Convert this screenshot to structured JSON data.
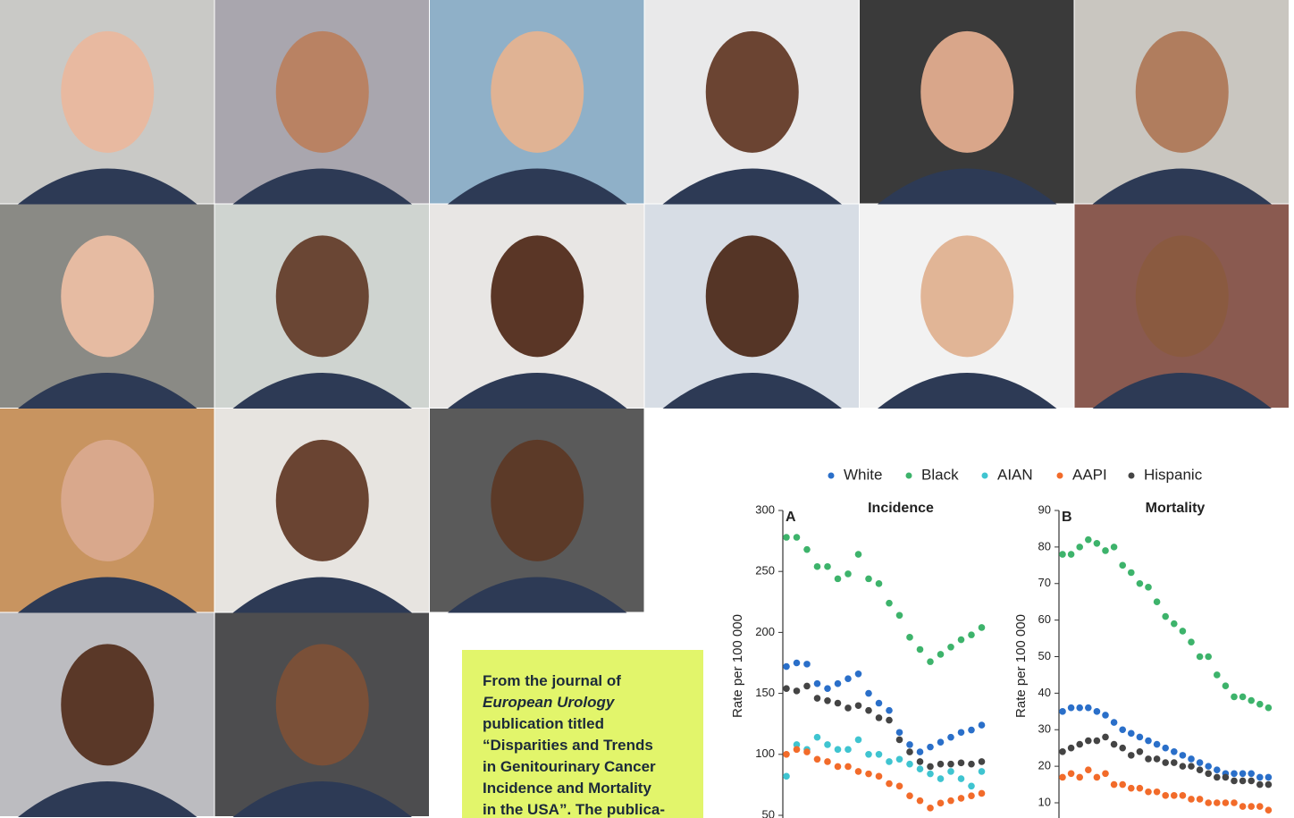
{
  "text_box": {
    "lines": [
      "From the journal of",
      "European Urology",
      "publication titled",
      "“Disparities and Trends",
      "in Genitourinary Cancer",
      "Incidence and Mortality",
      "in the USA”. The publica-"
    ],
    "italic_line": 1
  },
  "chart_data": {
    "type": "scatter",
    "legend": [
      {
        "name": "White",
        "color": "#2a6fc9"
      },
      {
        "name": "Black",
        "color": "#3db36b"
      },
      {
        "name": "AIAN",
        "color": "#3fc4d0"
      },
      {
        "name": "AAPI",
        "color": "#f26b2a"
      },
      {
        "name": "Hispanic",
        "color": "#444444"
      }
    ],
    "panels": [
      {
        "label": "A",
        "title": "Incidence",
        "ylabel": "Rate per 100 000",
        "ylim": [
          50,
          300
        ],
        "yticks": [
          50,
          100,
          150,
          200,
          250,
          300
        ],
        "series": [
          {
            "values": [
              172,
              175,
              174,
              158,
              154,
              158,
              162,
              166,
              150,
              142,
              136,
              118,
              108,
              102,
              106,
              110,
              114,
              118,
              120,
              124
            ]
          },
          {
            "values": [
              278,
              278,
              268,
              254,
              254,
              244,
              248,
              264,
              244,
              240,
              224,
              214,
              196,
              186,
              176,
              182,
              188,
              194,
              198,
              204
            ]
          },
          {
            "values": [
              82,
              108,
              104,
              114,
              108,
              104,
              104,
              112,
              100,
              100,
              94,
              96,
              92,
              88,
              84,
              80,
              86,
              80,
              74,
              86
            ]
          },
          {
            "values": [
              100,
              104,
              102,
              96,
              94,
              90,
              90,
              86,
              84,
              82,
              76,
              74,
              66,
              62,
              56,
              60,
              62,
              64,
              66,
              68
            ]
          },
          {
            "values": [
              154,
              152,
              156,
              146,
              144,
              142,
              138,
              140,
              136,
              130,
              128,
              112,
              102,
              94,
              90,
              92,
              92,
              93,
              92,
              94
            ]
          }
        ]
      },
      {
        "label": "B",
        "title": "Mortality",
        "ylabel": "Rate per 100 000",
        "ylim": [
          10,
          90
        ],
        "yticks": [
          10,
          20,
          30,
          40,
          50,
          60,
          70,
          80,
          90
        ],
        "series": [
          {
            "values": [
              35,
              36,
              36,
              36,
              35,
              34,
              32,
              30,
              29,
              28,
              27,
              26,
              25,
              24,
              23,
              22,
              21,
              20,
              19,
              18,
              18,
              18,
              18,
              17,
              17
            ]
          },
          {
            "values": [
              78,
              78,
              80,
              82,
              81,
              79,
              80,
              75,
              73,
              70,
              69,
              65,
              61,
              59,
              57,
              54,
              50,
              50,
              45,
              42,
              39,
              39,
              38,
              37,
              36
            ]
          },
          {
            "values": []
          },
          {
            "values": [
              17,
              18,
              17,
              19,
              17,
              18,
              15,
              15,
              14,
              14,
              13,
              13,
              12,
              12,
              12,
              11,
              11,
              10,
              10,
              10,
              10,
              9,
              9,
              9,
              8
            ]
          },
          {
            "values": [
              24,
              25,
              26,
              27,
              27,
              28,
              26,
              25,
              23,
              24,
              22,
              22,
              21,
              21,
              20,
              20,
              19,
              18,
              17,
              17,
              16,
              16,
              16,
              15,
              15
            ]
          }
        ]
      }
    ]
  }
}
